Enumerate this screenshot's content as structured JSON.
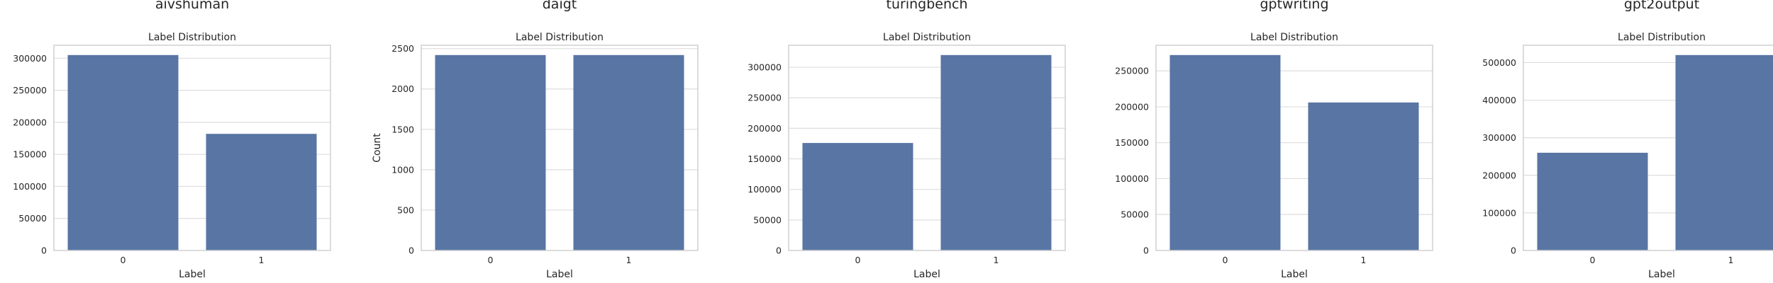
{
  "chart_data": [
    {
      "type": "bar",
      "suptitle": "aivshuman",
      "title": "Label Distribution",
      "xlabel": "Label",
      "ylabel": "",
      "categories": [
        "0",
        "1"
      ],
      "values": [
        305000,
        182000
      ],
      "ylim": [
        0,
        320250
      ],
      "yticks": [
        0,
        50000,
        100000,
        150000,
        200000,
        250000,
        300000
      ],
      "ytick_labels": [
        "0",
        "50000",
        "100000",
        "150000",
        "200000",
        "250000",
        "300000"
      ],
      "grid": "y",
      "color": "#5875a4"
    },
    {
      "type": "bar",
      "suptitle": "daigt",
      "title": "Label Distribution",
      "xlabel": "Label",
      "ylabel": "Count",
      "categories": [
        "0",
        "1"
      ],
      "values": [
        2420,
        2420
      ],
      "ylim": [
        0,
        2541
      ],
      "yticks": [
        0,
        500,
        1000,
        1500,
        2000,
        2500
      ],
      "ytick_labels": [
        "0",
        "500",
        "1000",
        "1500",
        "2000",
        "2500"
      ],
      "grid": "y",
      "color": "#5875a4"
    },
    {
      "type": "bar",
      "suptitle": "turingbench",
      "title": "Label Distribution",
      "xlabel": "Label",
      "ylabel": "",
      "categories": [
        "0",
        "1"
      ],
      "values": [
        176000,
        320000
      ],
      "ylim": [
        0,
        336000
      ],
      "yticks": [
        0,
        50000,
        100000,
        150000,
        200000,
        250000,
        300000
      ],
      "ytick_labels": [
        "0",
        "50000",
        "100000",
        "150000",
        "200000",
        "250000",
        "300000"
      ],
      "grid": "y",
      "color": "#5875a4"
    },
    {
      "type": "bar",
      "suptitle": "gptwriting",
      "title": "Label Distribution",
      "xlabel": "Label",
      "ylabel": "",
      "categories": [
        "0",
        "1"
      ],
      "values": [
        272000,
        206000
      ],
      "ylim": [
        0,
        285600
      ],
      "yticks": [
        0,
        50000,
        100000,
        150000,
        200000,
        250000
      ],
      "ytick_labels": [
        "0",
        "50000",
        "100000",
        "150000",
        "200000",
        "250000"
      ],
      "grid": "y",
      "color": "#5875a4"
    },
    {
      "type": "bar",
      "suptitle": "gpt2output",
      "title": "Label Distribution",
      "xlabel": "Label",
      "ylabel": "",
      "categories": [
        "0",
        "1"
      ],
      "values": [
        260000,
        520000
      ],
      "ylim": [
        0,
        546000
      ],
      "yticks": [
        0,
        100000,
        200000,
        300000,
        400000,
        500000
      ],
      "ytick_labels": [
        "0",
        "100000",
        "200000",
        "300000",
        "400000",
        "500000"
      ],
      "grid": "y",
      "color": "#5875a4"
    }
  ]
}
